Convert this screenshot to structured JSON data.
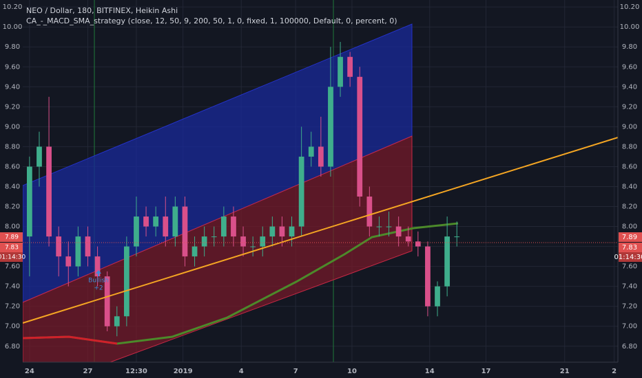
{
  "chart_data": {
    "type": "candlestick",
    "title": "NEO / Dollar, 180, BITFINEX, Heikin Ashi",
    "subtitle": "CA_-_MACD_SMA_strategy (close, 12, 50, 9, 200, 50, 1, 0, fixed, 1, 100000, Default, 0, percent, 0)",
    "annotation": "Bullish",
    "annotation_value": "+2",
    "price_labels": [
      "7.89",
      "7.83"
    ],
    "countdown": "01:14:30",
    "up_color": "#3fae8c",
    "down_color": "#d9508a",
    "grid": true,
    "xlim": [
      -0.35,
      30.29
    ],
    "ylim": [
      6.64,
      10.27
    ],
    "xticks": [
      {
        "value": 0,
        "label": "24"
      },
      {
        "value": 3,
        "label": "27"
      },
      {
        "value": 5.5,
        "label": "12:30"
      },
      {
        "value": 7.9,
        "label": "2019"
      },
      {
        "value": 10.9,
        "label": "4"
      },
      {
        "value": 13.7,
        "label": "7"
      },
      {
        "value": 16.6,
        "label": "10"
      },
      {
        "value": 20.6,
        "label": "14"
      },
      {
        "value": 23.5,
        "label": "17"
      },
      {
        "value": 27.55,
        "label": "21"
      },
      {
        "value": 30.1,
        "label": "2"
      }
    ],
    "yticks": [
      {
        "value": 6.8,
        "label": "6.80"
      },
      {
        "value": 7,
        "label": "7.00"
      },
      {
        "value": 7.2,
        "label": "7.20"
      },
      {
        "value": 7.4,
        "label": "7.40"
      },
      {
        "value": 7.6,
        "label": "7.60"
      },
      {
        "value": 7.8,
        "label": "7.80"
      },
      {
        "value": 8,
        "label": "8.00"
      },
      {
        "value": 8.2,
        "label": "8.20"
      },
      {
        "value": 8.4,
        "label": "8.40"
      },
      {
        "value": 8.6,
        "label": "8.60"
      },
      {
        "value": 8.8,
        "label": "8.80"
      },
      {
        "value": 9,
        "label": "9.00"
      },
      {
        "value": 9.2,
        "label": "9.20"
      },
      {
        "value": 9.4,
        "label": "9.40"
      },
      {
        "value": 9.6,
        "label": "9.60"
      },
      {
        "value": 9.8,
        "label": "9.80"
      },
      {
        "value": 10,
        "label": "10.00"
      },
      {
        "value": 10.2,
        "label": "10.20"
      }
    ],
    "x": [
      0,
      0.5,
      1,
      1.5,
      2,
      2.5,
      3,
      3.5,
      4,
      4.5,
      5,
      5.5,
      6,
      6.5,
      7,
      7.5,
      8,
      8.5,
      9,
      9.5,
      10,
      10.5,
      11,
      11.5,
      12,
      12.5,
      13,
      13.5,
      14,
      14.5,
      15,
      15.5,
      16,
      16.5,
      17,
      17.5,
      18,
      18.5,
      19,
      19.5,
      20,
      20.5,
      21,
      21.5,
      22
    ],
    "open": [
      7.9,
      8.6,
      8.8,
      7.9,
      7.7,
      7.6,
      7.9,
      7.7,
      7.5,
      7.0,
      7.1,
      7.8,
      8.1,
      8.0,
      8.1,
      7.9,
      8.2,
      7.7,
      7.8,
      7.9,
      7.9,
      8.1,
      7.9,
      7.8,
      7.8,
      7.9,
      8.0,
      7.9,
      8.0,
      8.7,
      8.8,
      8.6,
      9.4,
      9.7,
      9.5,
      8.3,
      8.0,
      8.0,
      8.0,
      7.9,
      7.85,
      7.8,
      7.2,
      7.4,
      7.9
    ],
    "high": [
      8.7,
      8.95,
      9.3,
      8.0,
      7.85,
      8.0,
      8.0,
      7.8,
      7.55,
      7.2,
      7.9,
      8.3,
      8.2,
      8.2,
      8.3,
      8.3,
      8.3,
      7.9,
      8.0,
      8.0,
      8.2,
      8.2,
      8.0,
      7.9,
      8.0,
      8.1,
      8.1,
      8.1,
      9.0,
      8.95,
      9.1,
      9.8,
      9.85,
      9.75,
      9.6,
      8.4,
      8.1,
      8.15,
      8.1,
      8.0,
      7.95,
      7.85,
      7.45,
      8.1,
      8.05
    ],
    "low": [
      7.5,
      8.4,
      7.8,
      7.5,
      7.4,
      7.5,
      7.6,
      7.4,
      6.95,
      6.9,
      7.0,
      7.7,
      7.9,
      7.9,
      7.8,
      7.8,
      7.6,
      7.6,
      7.7,
      7.8,
      7.8,
      7.8,
      7.7,
      7.7,
      7.7,
      7.8,
      7.8,
      7.8,
      7.9,
      8.6,
      8.5,
      8.5,
      9.3,
      9.4,
      8.2,
      7.9,
      7.9,
      7.9,
      7.8,
      7.8,
      7.7,
      7.1,
      7.1,
      7.3,
      7.8
    ],
    "close": [
      8.6,
      8.8,
      7.9,
      7.7,
      7.6,
      7.9,
      7.7,
      7.5,
      7.0,
      7.1,
      7.8,
      8.1,
      8.0,
      8.1,
      7.9,
      8.2,
      7.7,
      7.8,
      7.9,
      7.9,
      8.1,
      7.9,
      7.8,
      7.8,
      7.9,
      8.0,
      7.9,
      8.0,
      8.7,
      8.8,
      8.6,
      9.4,
      9.7,
      9.5,
      8.3,
      8.0,
      8.0,
      8.0,
      7.9,
      7.85,
      7.8,
      7.2,
      7.4,
      7.9,
      7.9
    ]
  }
}
